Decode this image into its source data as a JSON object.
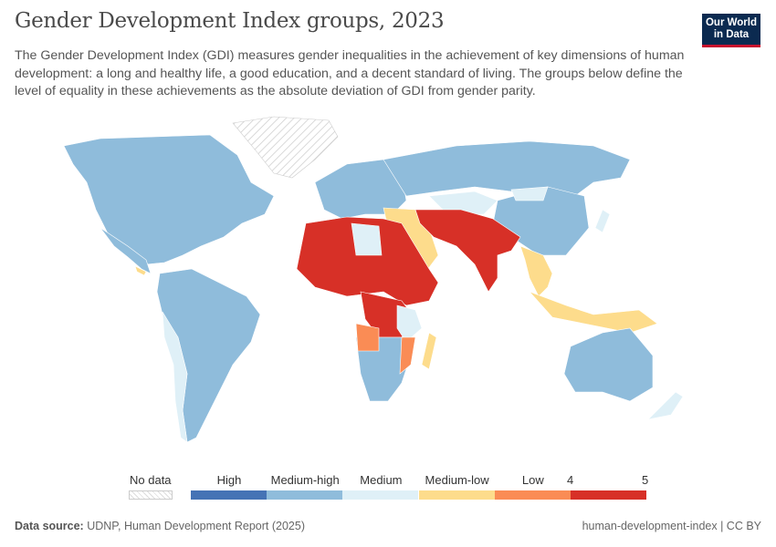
{
  "header": {
    "title": "Gender Development Index groups, 2023",
    "subtitle": "The Gender Development Index (GDI) measures gender inequalities in the achievement of key dimensions of human development: a long and healthy life, a good education, and a decent standard of living. The groups below define the level of equality in these achievements as the absolute deviation of GDI from gender parity.",
    "logo": "Our World in Data"
  },
  "legend": {
    "no_data": "No data",
    "groups": [
      {
        "label": "High",
        "color": "#4573b5"
      },
      {
        "label": "Medium-high",
        "color": "#8fbcdb"
      },
      {
        "label": "Medium",
        "color": "#dff0f7"
      },
      {
        "label": "Medium-low",
        "color": "#fddc8c"
      },
      {
        "label": "Low",
        "color": "#fa8c55"
      },
      {
        "label": "5",
        "color": "#d73027"
      }
    ],
    "extra_tick": "4"
  },
  "footer": {
    "source_label": "Data source:",
    "source": "UDNP, Human Development Report (2025)",
    "license": "human-development-index | CC BY"
  }
}
